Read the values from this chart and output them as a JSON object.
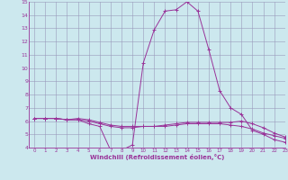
{
  "xlabel": "Windchill (Refroidissement éolien,°C)",
  "xlim": [
    -0.5,
    23
  ],
  "ylim": [
    4,
    15
  ],
  "yticks": [
    4,
    5,
    6,
    7,
    8,
    9,
    10,
    11,
    12,
    13,
    14,
    15
  ],
  "xticks": [
    0,
    1,
    2,
    3,
    4,
    5,
    6,
    7,
    8,
    9,
    10,
    11,
    12,
    13,
    14,
    15,
    16,
    17,
    18,
    19,
    20,
    21,
    22,
    23
  ],
  "bg_color": "#cce8ee",
  "line_color": "#993399",
  "grid_color": "#9999bb",
  "series": [
    {
      "x": [
        0,
        1,
        2,
        3,
        4,
        5,
        6,
        7,
        8,
        9,
        10,
        11,
        12,
        13,
        14,
        15,
        16,
        17,
        18,
        19,
        20,
        21,
        22,
        23
      ],
      "y": [
        6.2,
        6.2,
        6.2,
        6.1,
        6.1,
        5.8,
        5.6,
        3.8,
        3.8,
        4.2,
        10.4,
        12.9,
        14.3,
        14.4,
        15.0,
        14.3,
        11.4,
        8.3,
        7.0,
        6.5,
        5.3,
        5.0,
        4.6,
        4.4
      ]
    },
    {
      "x": [
        0,
        1,
        2,
        3,
        4,
        5,
        6,
        7,
        8,
        9,
        10,
        11,
        12,
        13,
        14,
        15,
        16,
        17,
        18,
        19,
        20,
        21,
        22,
        23
      ],
      "y": [
        6.2,
        6.2,
        6.2,
        6.1,
        6.1,
        6.0,
        5.8,
        5.6,
        5.5,
        5.5,
        5.6,
        5.6,
        5.6,
        5.7,
        5.8,
        5.8,
        5.8,
        5.8,
        5.7,
        5.6,
        5.4,
        5.1,
        4.9,
        4.7
      ]
    },
    {
      "x": [
        0,
        1,
        2,
        3,
        4,
        5,
        6,
        7,
        8,
        9,
        10,
        11,
        12,
        13,
        14,
        15,
        16,
        17,
        18,
        19,
        20,
        21,
        22,
        23
      ],
      "y": [
        6.2,
        6.2,
        6.2,
        6.1,
        6.2,
        6.1,
        5.9,
        5.7,
        5.6,
        5.6,
        5.6,
        5.6,
        5.7,
        5.8,
        5.9,
        5.9,
        5.9,
        5.9,
        5.9,
        6.0,
        5.8,
        5.5,
        5.1,
        4.8
      ]
    }
  ]
}
